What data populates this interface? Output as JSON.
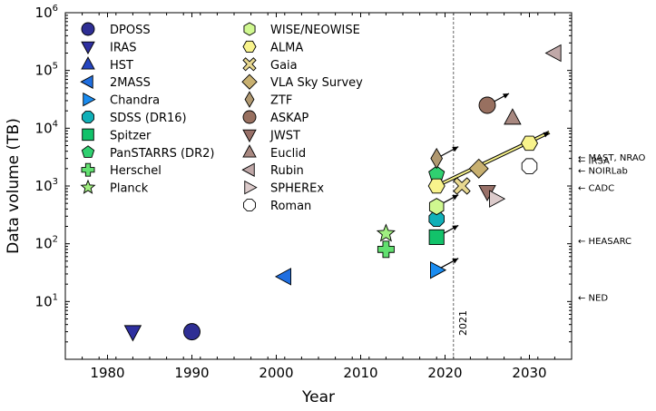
{
  "chart_data": {
    "type": "scatter",
    "title": "",
    "xlabel": "Year",
    "ylabel": "Data volume (TB)",
    "xlim": [
      1975,
      2035
    ],
    "ylim_log10": [
      0,
      6
    ],
    "y_scale": "log",
    "grid": false,
    "legend_placement": "top-left",
    "x_ticks": [
      1980,
      1990,
      2000,
      2010,
      2020,
      2030
    ],
    "y_ticks": [
      {
        "exp": 1,
        "label_base": "10",
        "label_exp": "1"
      },
      {
        "exp": 2,
        "label_base": "10",
        "label_exp": "2"
      },
      {
        "exp": 3,
        "label_base": "10",
        "label_exp": "3"
      },
      {
        "exp": 4,
        "label_base": "10",
        "label_exp": "4"
      },
      {
        "exp": 5,
        "label_base": "10",
        "label_exp": "5"
      },
      {
        "exp": 6,
        "label_base": "10",
        "label_exp": "6"
      }
    ],
    "vline": {
      "x": 2021,
      "label": "2021"
    },
    "series": [
      {
        "name": "DPOSS",
        "marker": "circle",
        "color": "#2e2e94",
        "x": 1990,
        "y": 3
      },
      {
        "name": "IRAS",
        "marker": "triangle-down",
        "color": "#2e2fa0",
        "x": 1983,
        "y": 3
      },
      {
        "name": "HST",
        "marker": "triangle-up",
        "color": "#2545c0",
        "x": null,
        "y": null
      },
      {
        "name": "2MASS",
        "marker": "triangle-left",
        "color": "#1f6ee0",
        "x": 2001,
        "y": 27
      },
      {
        "name": "Chandra",
        "marker": "triangle-right",
        "color": "#1a8cf0",
        "x": 2019,
        "y": 35,
        "arrow": true
      },
      {
        "name": "SDSS (DR16)",
        "marker": "octagon",
        "color": "#10b0b8",
        "x": 2019,
        "y": 270
      },
      {
        "name": "Spitzer",
        "marker": "square",
        "color": "#12c26a",
        "x": 2019,
        "y": 130,
        "arrow": true
      },
      {
        "name": "PanSTARRS (DR2)",
        "marker": "pentagon",
        "color": "#30d070",
        "x": 2019,
        "y": 1600
      },
      {
        "name": "Herschel",
        "marker": "plus",
        "color": "#62e070",
        "x": 2013,
        "y": 80
      },
      {
        "name": "Planck",
        "marker": "star",
        "color": "#a0ee80",
        "x": 2013,
        "y": 150
      },
      {
        "name": "WISE/NEOWISE",
        "marker": "hexagon",
        "color": "#d0f890",
        "x": 2019,
        "y": 440,
        "arrow": true
      },
      {
        "name": "ALMA",
        "marker": "hexagon-h",
        "color": "#f8f38c",
        "x": 2019,
        "y": 1000,
        "arrow_to": [
          2030,
          5500
        ]
      },
      {
        "name": "Gaia",
        "marker": "x-filled",
        "color": "#e8d890",
        "x": 2022,
        "y": 1000
      },
      {
        "name": "VLA Sky Survey",
        "marker": "diamond",
        "color": "#c8b070",
        "x": 2024,
        "y": 2000
      },
      {
        "name": "ZTF",
        "marker": "thin-diamond",
        "color": "#b09870",
        "x": 2019,
        "y": 3000,
        "arrow": true
      },
      {
        "name": "ASKAP",
        "marker": "circle",
        "color": "#987060",
        "x": 2025,
        "y": 25000,
        "arrow": true
      },
      {
        "name": "JWST",
        "marker": "triangle-down",
        "color": "#987068",
        "x": 2025,
        "y": 800
      },
      {
        "name": "Euclid",
        "marker": "triangle-up",
        "color": "#a88880",
        "x": 2028,
        "y": 15000
      },
      {
        "name": "Rubin",
        "marker": "triangle-left",
        "color": "#c0a8a8",
        "x": 2033,
        "y": 200000
      },
      {
        "name": "SPHEREx",
        "marker": "triangle-right",
        "color": "#dccbcb",
        "x": 2026,
        "y": 600
      },
      {
        "name": "Roman",
        "marker": "octagon",
        "color": "#ffffff",
        "x": 2030,
        "y": 2200
      }
    ],
    "annotations": [
      {
        "label": "← MAST, NRAO",
        "y": 3200
      },
      {
        "label": "← IRSA",
        "y": 2800
      },
      {
        "label": "← NOIRLab",
        "y": 1900
      },
      {
        "label": "← CADC",
        "y": 950
      },
      {
        "label": "← HEASARC",
        "y": 115
      },
      {
        "label": "← NED",
        "y": 12
      }
    ]
  }
}
